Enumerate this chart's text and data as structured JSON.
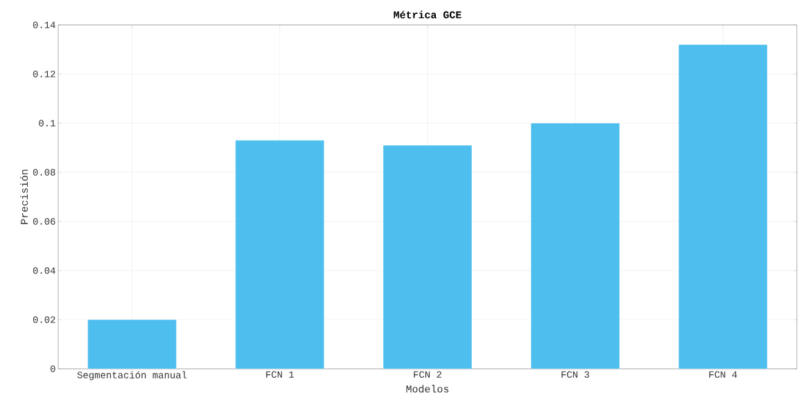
{
  "chart_data": {
    "type": "bar",
    "title": "Métrica GCE",
    "xlabel": "Modelos",
    "ylabel": "Precisión",
    "categories": [
      "Segmentación manual",
      "FCN 1",
      "FCN 2",
      "FCN 3",
      "FCN 4"
    ],
    "values": [
      0.02,
      0.093,
      0.091,
      0.1,
      0.132
    ],
    "color": "#4dbeee",
    "ylim": [
      0,
      0.14
    ],
    "yticks": [
      0,
      0.02,
      0.04,
      0.06,
      0.08,
      0.1,
      0.12,
      0.14
    ],
    "grid": true
  }
}
